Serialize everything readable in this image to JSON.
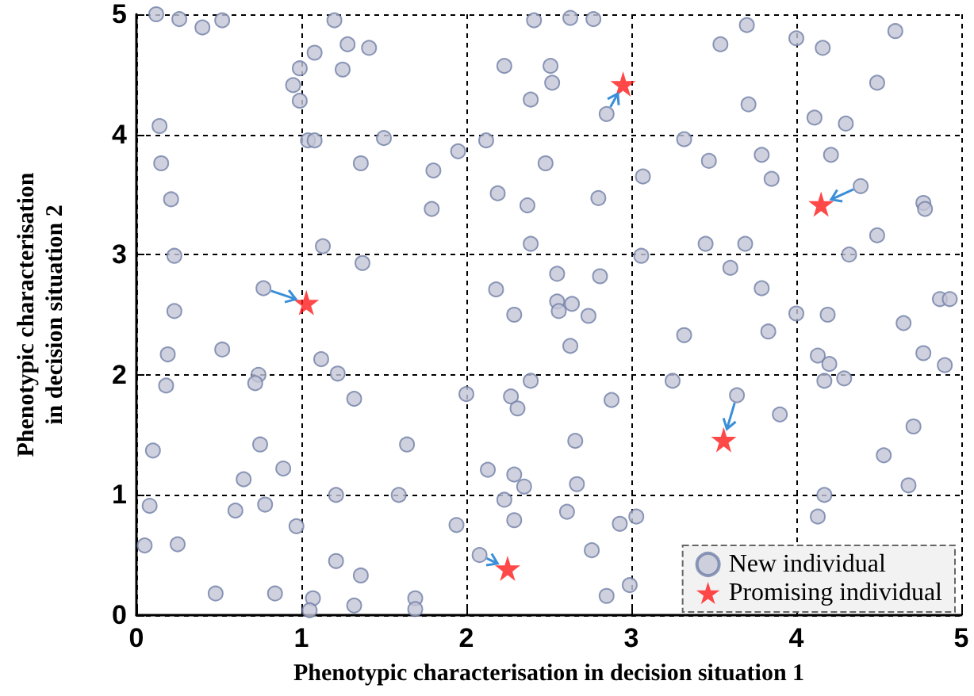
{
  "chart_data": {
    "type": "scatter",
    "xlabel": "Phenotypic characterisation in decision situation 1",
    "ylabel": "Phenotypic characterisation\nin decision situation 2",
    "xlim": [
      0,
      5
    ],
    "ylim": [
      0,
      5
    ],
    "xticks": [
      0,
      1,
      2,
      3,
      4,
      5
    ],
    "yticks": [
      0,
      1,
      2,
      3,
      4,
      5
    ],
    "grid": true,
    "legend": "bottom right",
    "series": [
      {
        "name": "New individual",
        "color": "#c4c6d6",
        "marker": "circle",
        "x": [
          0.12,
          0.26,
          0.4,
          0.52,
          1.2,
          1.08,
          1.28,
          1.41,
          0.99,
          1.25,
          0.95,
          0.99,
          0.14,
          1.04,
          1.08,
          1.5,
          0.15,
          1.36,
          0.21,
          1.13,
          0.23,
          1.37,
          0.77,
          0.23,
          2.41,
          2.63,
          2.77,
          2.23,
          2.51,
          2.52,
          2.39,
          2.85,
          3.32,
          2.12,
          1.95,
          1.8,
          2.48,
          3.07,
          2.19,
          2.37,
          2.8,
          1.79,
          2.39,
          3.06,
          2.55,
          2.81,
          2.18,
          2.55,
          2.64,
          2.29,
          2.56,
          2.74,
          3.7,
          3.54,
          4.0,
          4.16,
          4.6,
          4.49,
          3.71,
          4.11,
          4.3,
          3.47,
          3.79,
          4.21,
          3.85,
          4.39,
          4.77,
          4.78,
          4.49,
          3.45,
          3.69,
          4.32,
          3.6,
          3.79,
          4.87,
          4.93,
          4.0,
          4.19,
          0.19,
          0.52,
          0.74,
          0.72,
          0.18,
          1.12,
          1.22,
          1.32,
          1.64,
          0.1,
          0.75,
          0.89,
          0.65,
          0.08,
          0.6,
          0.78,
          1.21,
          1.59,
          0.97,
          0.05,
          0.25,
          1.21,
          1.36,
          0.48,
          0.84,
          1.07,
          1.05,
          1.32,
          2.63,
          3.32,
          2.39,
          2.0,
          2.27,
          2.31,
          2.88,
          3.25,
          2.66,
          2.13,
          2.29,
          2.35,
          2.67,
          2.23,
          2.61,
          1.94,
          2.29,
          2.93,
          3.03,
          2.76,
          2.08,
          2.85,
          1.69,
          1.69,
          2.99,
          3.83,
          4.65,
          4.13,
          4.2,
          4.77,
          4.9,
          4.17,
          4.29,
          3.64,
          3.9,
          4.71,
          4.53,
          4.68,
          4.17,
          4.13
        ],
        "values": [
          5.0,
          4.96,
          4.89,
          4.95,
          4.95,
          4.68,
          4.75,
          4.72,
          4.55,
          4.54,
          4.41,
          4.28,
          4.07,
          3.95,
          3.95,
          3.97,
          3.76,
          3.76,
          3.46,
          3.07,
          2.99,
          2.93,
          2.72,
          2.53,
          4.95,
          4.97,
          4.96,
          4.57,
          4.57,
          4.43,
          4.29,
          4.17,
          3.96,
          3.95,
          3.86,
          3.7,
          3.76,
          3.65,
          3.51,
          3.41,
          3.47,
          3.38,
          3.09,
          2.99,
          2.84,
          2.82,
          2.71,
          2.61,
          2.59,
          2.5,
          2.53,
          2.49,
          4.91,
          4.75,
          4.8,
          4.72,
          4.86,
          4.43,
          4.25,
          4.14,
          4.09,
          3.78,
          3.83,
          3.83,
          3.63,
          3.57,
          3.43,
          3.38,
          3.16,
          3.09,
          3.09,
          3.0,
          2.89,
          2.72,
          2.63,
          2.63,
          2.51,
          2.5,
          2.17,
          2.21,
          2.0,
          1.93,
          1.91,
          2.13,
          2.01,
          1.8,
          1.42,
          1.37,
          1.42,
          1.22,
          1.13,
          0.91,
          0.87,
          0.92,
          1.0,
          1.0,
          0.74,
          0.58,
          0.59,
          0.45,
          0.33,
          0.18,
          0.18,
          0.14,
          0.04,
          0.08,
          2.24,
          2.33,
          1.95,
          1.84,
          1.82,
          1.72,
          1.79,
          1.95,
          1.45,
          1.21,
          1.17,
          1.07,
          1.09,
          0.96,
          0.86,
          0.75,
          0.79,
          0.76,
          0.82,
          0.54,
          0.5,
          0.16,
          0.14,
          0.05,
          0.25,
          2.36,
          2.43,
          2.16,
          2.09,
          2.18,
          2.08,
          1.95,
          1.97,
          1.83,
          1.67,
          1.57,
          1.33,
          1.08,
          1.0,
          0.82
        ]
      },
      {
        "name": "Promising individual",
        "color": "#ff1a1a",
        "marker": "star",
        "x": [
          1.03,
          2.95,
          4.15,
          3.56,
          2.25
        ],
        "values": [
          2.6,
          4.42,
          3.42,
          1.46,
          0.39
        ]
      }
    ]
  }
}
